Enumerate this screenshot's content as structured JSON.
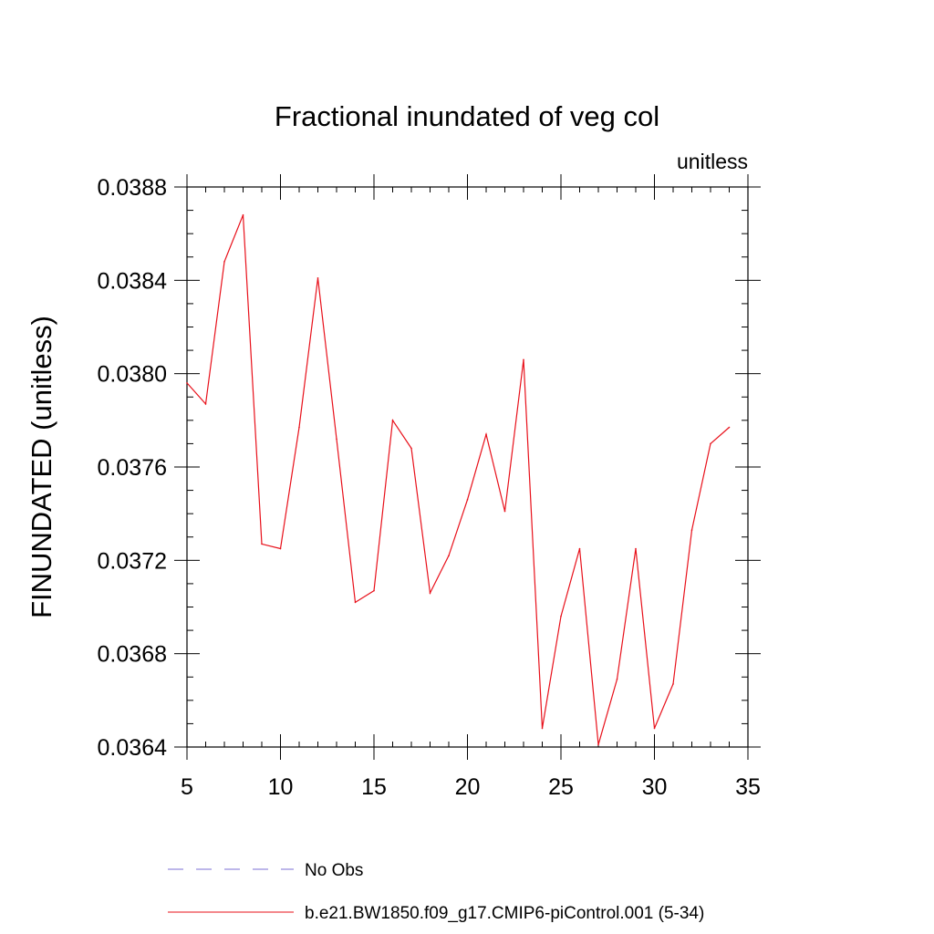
{
  "chart_data": {
    "type": "line",
    "title": "Fractional inundated of veg col",
    "units_label": "unitless",
    "ylabel": "FINUNDATED  (unitless)",
    "xlabel": "",
    "xlim": [
      5,
      35
    ],
    "ylim": [
      0.0364,
      0.0388
    ],
    "x_ticks": [
      5,
      10,
      15,
      20,
      25,
      30,
      35
    ],
    "y_ticks": [
      0.0364,
      0.0368,
      0.0372,
      0.0376,
      0.038,
      0.0384,
      0.0388
    ],
    "y_tick_labels": [
      "0.0364",
      "0.0368",
      "0.0372",
      "0.0376",
      "0.0380",
      "0.0384",
      "0.0388"
    ],
    "grid": false,
    "legend_position": "bottom",
    "legend": [
      {
        "name": "No Obs",
        "color": "#7b6fd6",
        "dash": true
      },
      {
        "name": "b.e21.BW1850.f09_g17.CMIP6-piControl.001 (5-34)",
        "color": "#e8101a",
        "dash": false
      }
    ],
    "series": [
      {
        "name": "b.e21.BW1850.f09_g17.CMIP6-piControl.001 (5-34)",
        "color": "#e8101a",
        "x": [
          5,
          6,
          7,
          8,
          9,
          10,
          11,
          12,
          13,
          14,
          15,
          16,
          17,
          18,
          19,
          20,
          21,
          22,
          23,
          24,
          25,
          26,
          27,
          28,
          29,
          30,
          31,
          32,
          33,
          34
        ],
        "y": [
          0.03796,
          0.03787,
          0.03848,
          0.03868,
          0.03727,
          0.03725,
          0.03777,
          0.03841,
          0.03772,
          0.03702,
          0.03707,
          0.0378,
          0.03768,
          0.03706,
          0.03722,
          0.03746,
          0.03774,
          0.03741,
          0.03806,
          0.03648,
          0.03696,
          0.03725,
          0.03641,
          0.03669,
          0.03725,
          0.03648,
          0.03667,
          0.03733,
          0.0377,
          0.03777
        ]
      }
    ]
  }
}
